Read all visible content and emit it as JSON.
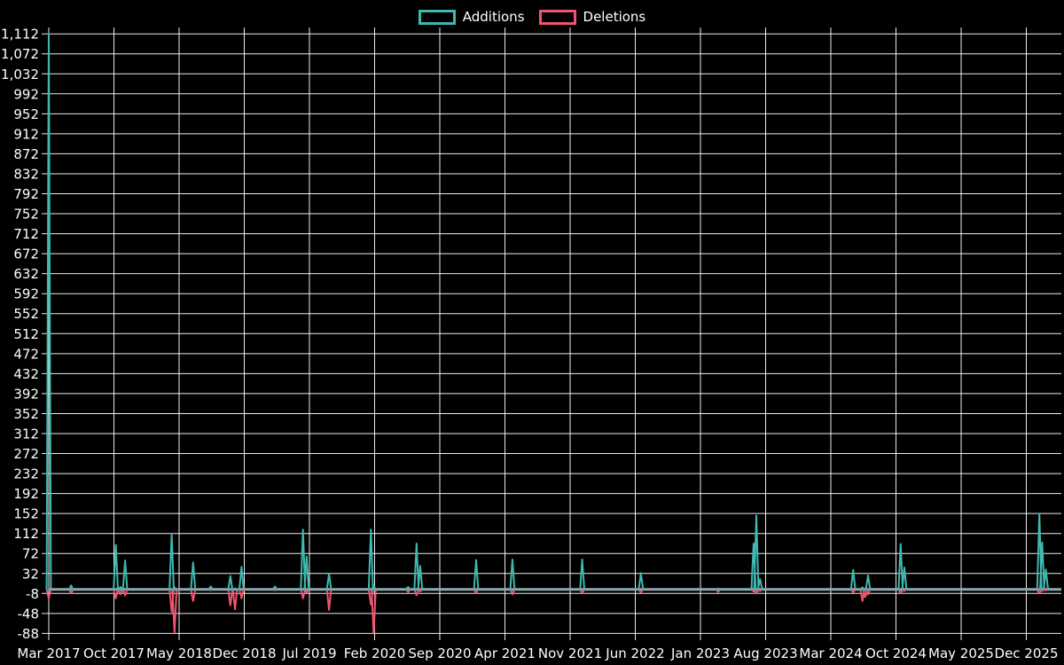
{
  "page": {
    "background": "#000000"
  },
  "legend": {
    "items": [
      {
        "label": "Additions",
        "color": "#3FB8B0"
      },
      {
        "label": "Deletions",
        "color": "#F1546F"
      }
    ]
  },
  "colors": {
    "background": "#000000",
    "gridline": "#FFFFFF",
    "baseline_band": "#8FA9B2",
    "text": "#FFFFFF",
    "additions": "#3FB8B0",
    "deletions": "#F1546F"
  },
  "chart_data": {
    "type": "line",
    "title": "",
    "legend": [
      "Additions",
      "Deletions"
    ],
    "legend_position": "top-center",
    "grid": true,
    "x": {
      "tick_labels": [
        "Mar 2017",
        "Oct 2017",
        "May 2018",
        "Dec 2018",
        "Jul 2019",
        "Feb 2020",
        "Sep 2020",
        "Apr 2021",
        "Nov 2021",
        "Jun 2022",
        "Jan 2023",
        "Aug 2023",
        "Mar 2024",
        "Oct 2024",
        "May 2025",
        "Dec 2025"
      ],
      "months_per_tick": 7
    },
    "y": {
      "min": -88,
      "max": 1112,
      "tick_step": 40,
      "format": "comma-thousands"
    },
    "baseline_value": 0,
    "points_unit": "m = months after first tick (Mar 2017); weeks not listed have value ~0",
    "series": [
      {
        "name": "Additions",
        "color": "#3FB8B0",
        "points": [
          {
            "m": 0,
            "v": 1112
          },
          {
            "m": 2.4,
            "v": 8
          },
          {
            "m": 7.2,
            "v": 89
          },
          {
            "m": 7.7,
            "v": 5
          },
          {
            "m": 8.2,
            "v": 58
          },
          {
            "m": 13.2,
            "v": 110
          },
          {
            "m": 13.5,
            "v": 4
          },
          {
            "m": 15.5,
            "v": 54
          },
          {
            "m": 17.4,
            "v": 6
          },
          {
            "m": 19.5,
            "v": 27
          },
          {
            "m": 20.0,
            "v": 2
          },
          {
            "m": 20.7,
            "v": 45
          },
          {
            "m": 24.3,
            "v": 6
          },
          {
            "m": 27.3,
            "v": 120
          },
          {
            "m": 27.7,
            "v": 66
          },
          {
            "m": 30.1,
            "v": 32
          },
          {
            "m": 34.6,
            "v": 120
          },
          {
            "m": 34.9,
            "v": 8
          },
          {
            "m": 38.6,
            "v": 5
          },
          {
            "m": 39.5,
            "v": 92
          },
          {
            "m": 39.9,
            "v": 47
          },
          {
            "m": 45.9,
            "v": 59
          },
          {
            "m": 49.8,
            "v": 60
          },
          {
            "m": 57.3,
            "v": 60
          },
          {
            "m": 63.6,
            "v": 33
          },
          {
            "m": 71.9,
            "v": 2
          },
          {
            "m": 75.7,
            "v": 92
          },
          {
            "m": 76.0,
            "v": 148
          },
          {
            "m": 76.4,
            "v": 21
          },
          {
            "m": 86.4,
            "v": 39
          },
          {
            "m": 87.4,
            "v": 4
          },
          {
            "m": 87.7,
            "v": 2
          },
          {
            "m": 88.0,
            "v": 28
          },
          {
            "m": 91.5,
            "v": 91
          },
          {
            "m": 91.9,
            "v": 44
          },
          {
            "m": 106.4,
            "v": 152
          },
          {
            "m": 106.7,
            "v": 94
          },
          {
            "m": 107.1,
            "v": 40
          }
        ]
      },
      {
        "name": "Deletions",
        "color": "#F1546F",
        "points": [
          {
            "m": 0,
            "v": -18
          },
          {
            "m": 2.4,
            "v": -8
          },
          {
            "m": 7.2,
            "v": -18
          },
          {
            "m": 7.7,
            "v": -10
          },
          {
            "m": 8.2,
            "v": -12
          },
          {
            "m": 13.2,
            "v": -44
          },
          {
            "m": 13.5,
            "v": -86
          },
          {
            "m": 15.5,
            "v": -23
          },
          {
            "m": 17.4,
            "v": -2
          },
          {
            "m": 19.5,
            "v": -32
          },
          {
            "m": 20.0,
            "v": -40
          },
          {
            "m": 20.7,
            "v": -18
          },
          {
            "m": 24.3,
            "v": -2
          },
          {
            "m": 27.3,
            "v": -18
          },
          {
            "m": 27.7,
            "v": -6
          },
          {
            "m": 30.1,
            "v": -41
          },
          {
            "m": 34.6,
            "v": -30
          },
          {
            "m": 34.9,
            "v": -88
          },
          {
            "m": 38.6,
            "v": -5
          },
          {
            "m": 39.5,
            "v": -12
          },
          {
            "m": 39.9,
            "v": -4
          },
          {
            "m": 45.9,
            "v": -8
          },
          {
            "m": 49.8,
            "v": -10
          },
          {
            "m": 57.3,
            "v": -8
          },
          {
            "m": 63.6,
            "v": -6
          },
          {
            "m": 71.9,
            "v": -5
          },
          {
            "m": 75.7,
            "v": -4
          },
          {
            "m": 76.0,
            "v": -8
          },
          {
            "m": 76.4,
            "v": -3
          },
          {
            "m": 86.4,
            "v": -6
          },
          {
            "m": 87.4,
            "v": -23
          },
          {
            "m": 87.7,
            "v": -15
          },
          {
            "m": 88.0,
            "v": -10
          },
          {
            "m": 91.5,
            "v": -8
          },
          {
            "m": 91.9,
            "v": -3
          },
          {
            "m": 106.4,
            "v": -8
          },
          {
            "m": 106.7,
            "v": -3
          },
          {
            "m": 107.1,
            "v": -2
          }
        ]
      }
    ]
  }
}
